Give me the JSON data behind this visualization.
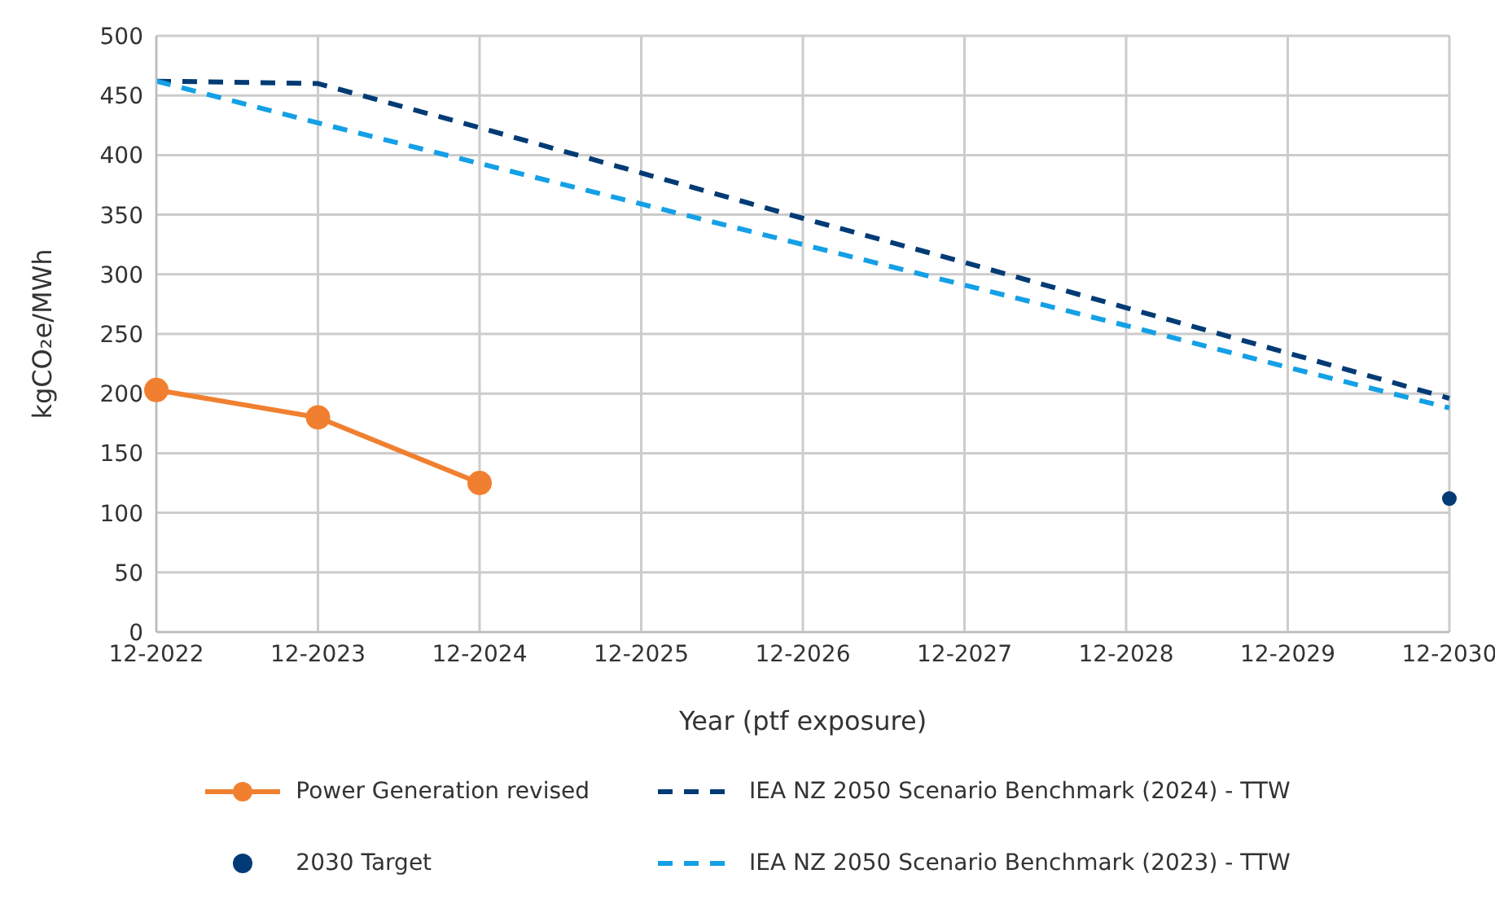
{
  "chart_data": {
    "type": "line",
    "xlabel": "Year (ptf exposure)",
    "ylabel": "kgCO₂e/MWh",
    "categories": [
      "12-2022",
      "12-2023",
      "12-2024",
      "12-2025",
      "12-2026",
      "12-2027",
      "12-2028",
      "12-2029",
      "12-2030"
    ],
    "series": [
      {
        "name": "Power Generation revised",
        "color": "#f08030",
        "type": "line",
        "marker": "circle",
        "line_style": "solid",
        "values": [
          203,
          180,
          125,
          null,
          null,
          null,
          null,
          null,
          null
        ]
      },
      {
        "name": "2030 Target",
        "color": "#003b75",
        "type": "scatter",
        "marker": "circle",
        "values": [
          null,
          null,
          null,
          null,
          null,
          null,
          null,
          null,
          112
        ]
      },
      {
        "name": "IEA NZ 2050 Scenario Benchmark (2024) - TTW",
        "color": "#003b75",
        "type": "line",
        "marker": "none",
        "line_style": "dashed",
        "values": [
          462,
          460,
          423,
          385,
          347,
          310,
          272,
          234,
          196
        ]
      },
      {
        "name": "IEA NZ 2050 Scenario Benchmark (2023) - TTW",
        "color": "#14a0e6",
        "type": "line",
        "marker": "none",
        "line_style": "dashed",
        "values": [
          462,
          427,
          393,
          359,
          325,
          291,
          257,
          222,
          188
        ]
      }
    ],
    "ylim": [
      0,
      500
    ],
    "yticks": [
      0,
      50,
      100,
      150,
      200,
      250,
      300,
      350,
      400,
      450,
      500
    ],
    "grid": true,
    "legend": "bottom"
  }
}
